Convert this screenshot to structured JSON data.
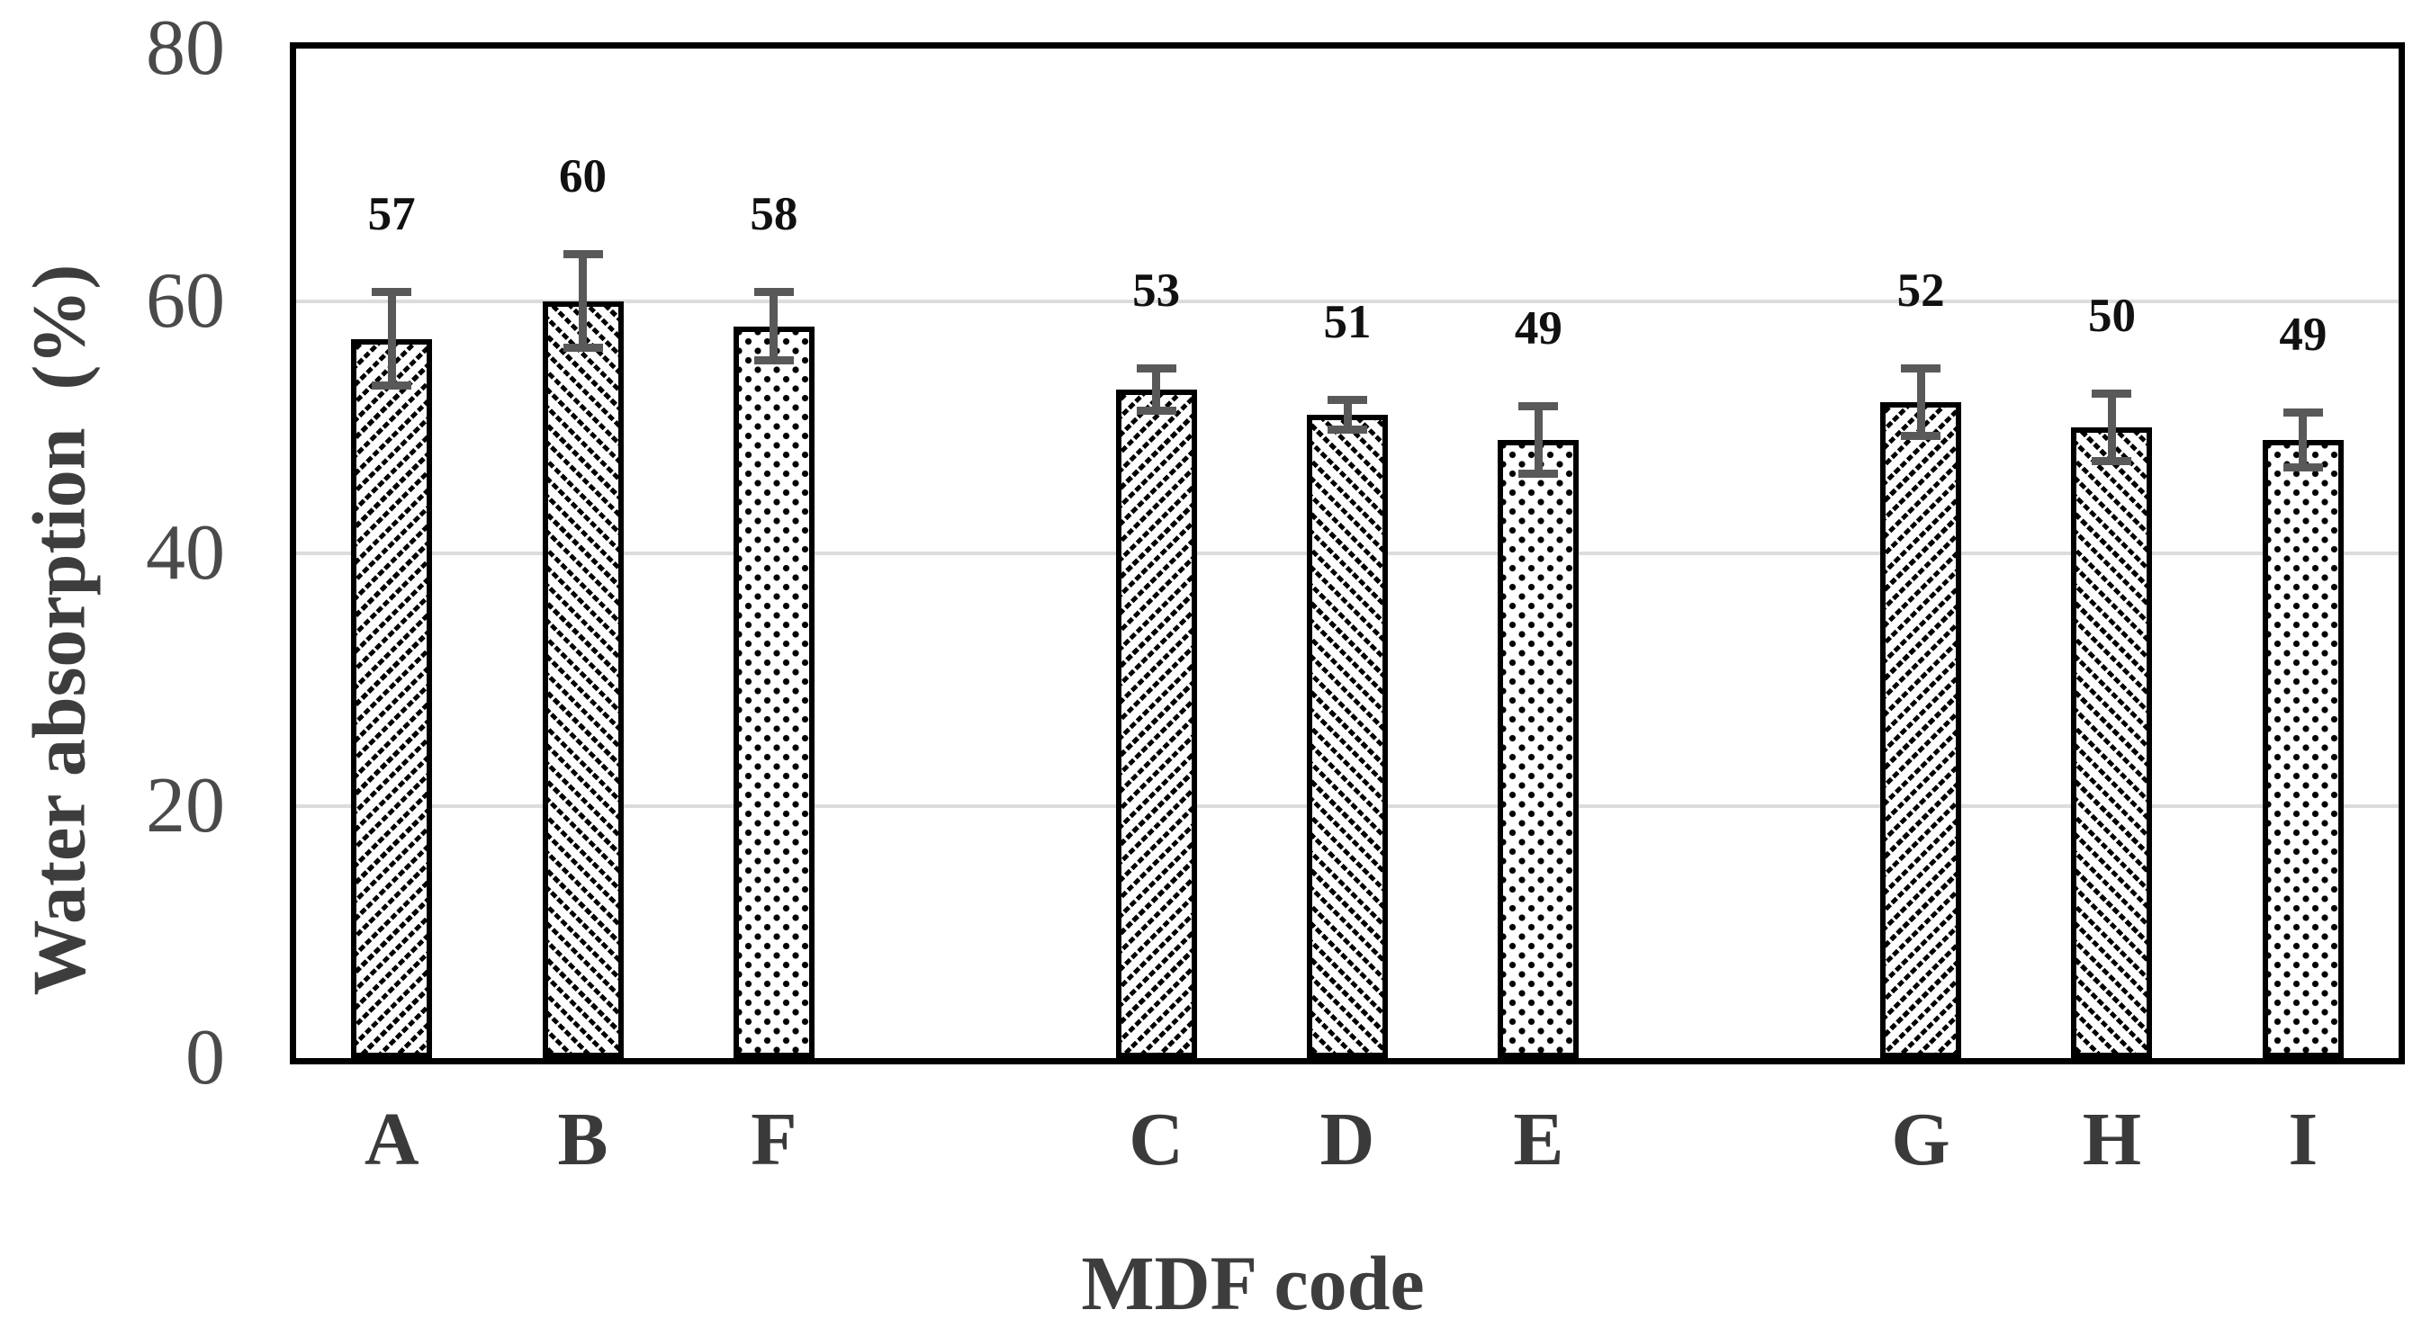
{
  "chart_data": {
    "type": "bar",
    "title": "",
    "xlabel": "MDF code",
    "ylabel": "Water absorption  (%)",
    "ylim": [
      0,
      80
    ],
    "y_ticks": [
      0,
      20,
      40,
      60,
      80
    ],
    "gridlines": [
      20,
      40,
      60
    ],
    "grid": "horizontal light gray",
    "legend_position": "none",
    "bar_outline_color": "#000000",
    "error_bar_color": "#595959",
    "groups": [
      {
        "bars": [
          {
            "code": "A",
            "value": 57,
            "error": 4,
            "pattern": "diagonal-up"
          },
          {
            "code": "B",
            "value": 60,
            "error": 4,
            "pattern": "diagonal-down"
          },
          {
            "code": "F",
            "value": 58,
            "error": 3,
            "pattern": "dots"
          }
        ]
      },
      {
        "bars": [
          {
            "code": "C",
            "value": 53,
            "error": 2,
            "pattern": "diagonal-up"
          },
          {
            "code": "D",
            "value": 51,
            "error": 1.5,
            "pattern": "diagonal-down"
          },
          {
            "code": "E",
            "value": 49,
            "error": 3,
            "pattern": "dots"
          }
        ]
      },
      {
        "bars": [
          {
            "code": "G",
            "value": 52,
            "error": 3,
            "pattern": "diagonal-up"
          },
          {
            "code": "H",
            "value": 50,
            "error": 3,
            "pattern": "diagonal-down"
          },
          {
            "code": "I",
            "value": 49,
            "error": 2.5,
            "pattern": "dots"
          }
        ]
      }
    ]
  },
  "colors": {
    "axis": "#000000",
    "grid": "#dcdcdc",
    "error_bar": "#595959",
    "tick_text": "#4a4a4a",
    "label_text": "#3a3a3a",
    "value_text": "#111111"
  }
}
